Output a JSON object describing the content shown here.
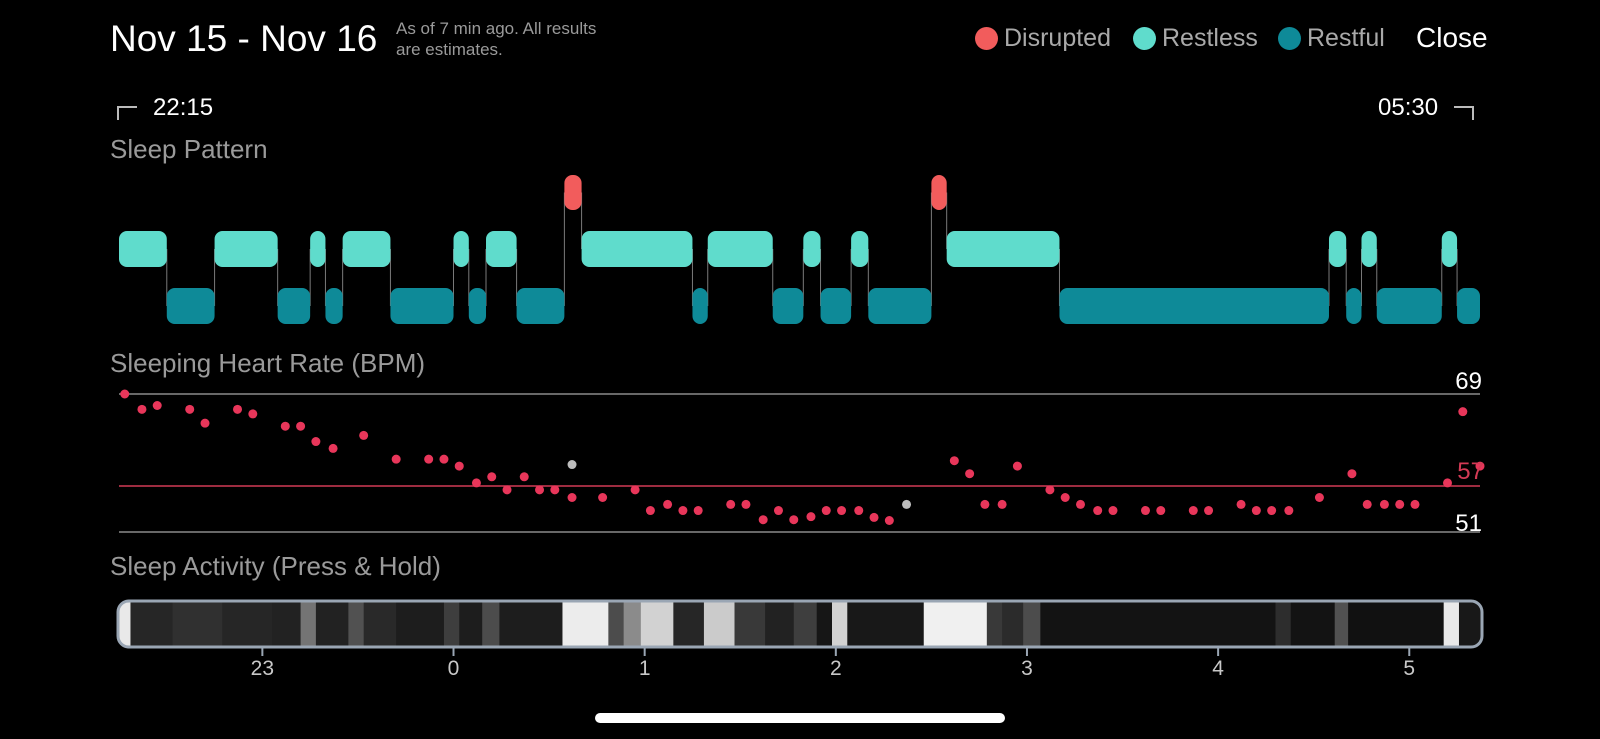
{
  "header": {
    "date_range": "Nov 15 - Nov 16",
    "as_of_line1": "As of 7 min ago. All results",
    "as_of_line2": "are estimates.",
    "close_label": "Close"
  },
  "legend": [
    {
      "label": "Disrupted",
      "color": "#f25c5c"
    },
    {
      "label": "Restless",
      "color": "#5fdccc"
    },
    {
      "label": "Restful",
      "color": "#0e8a98"
    }
  ],
  "time_range": {
    "start": "22:15",
    "end": "05:30"
  },
  "sections": {
    "sleep_pattern": "Sleep Pattern",
    "heart_rate": "Sleeping Heart Rate (BPM)",
    "activity": "Sleep Activity (Press & Hold)"
  },
  "heart_rate": {
    "max_label": "69",
    "avg_label": "57",
    "min_label": "51",
    "max": 69,
    "avg": 57,
    "min": 51,
    "dot_color": "#e8365a",
    "avg_line_color": "#d23a55",
    "gray_dot_color": "#bdbdbd",
    "points": [
      [
        22.28,
        69
      ],
      [
        22.37,
        67
      ],
      [
        22.45,
        67.5
      ],
      [
        22.62,
        67
      ],
      [
        22.7,
        65.2
      ],
      [
        22.87,
        67
      ],
      [
        22.95,
        66.4
      ],
      [
        23.12,
        64.8
      ],
      [
        23.2,
        64.8
      ],
      [
        23.28,
        62.8
      ],
      [
        23.37,
        61.9
      ],
      [
        23.53,
        63.6
      ],
      [
        23.7,
        60.5
      ],
      [
        23.87,
        60.5
      ],
      [
        23.95,
        60.5
      ],
      [
        24.03,
        59.6
      ],
      [
        24.12,
        57.4
      ],
      [
        24.2,
        58.2
      ],
      [
        24.28,
        56.5
      ],
      [
        24.37,
        58.2
      ],
      [
        24.45,
        56.5
      ],
      [
        24.53,
        56.5
      ],
      [
        24.62,
        55.5
      ],
      [
        24.78,
        55.5
      ],
      [
        24.95,
        56.5
      ],
      [
        25.03,
        53.8
      ],
      [
        25.12,
        54.6
      ],
      [
        25.2,
        53.8
      ],
      [
        25.28,
        53.8
      ],
      [
        25.45,
        54.6
      ],
      [
        25.53,
        54.6
      ],
      [
        25.62,
        52.6
      ],
      [
        25.7,
        53.8
      ],
      [
        25.78,
        52.6
      ],
      [
        25.87,
        53.0
      ],
      [
        25.95,
        53.8
      ],
      [
        26.03,
        53.8
      ],
      [
        26.12,
        53.8
      ],
      [
        26.2,
        52.9
      ],
      [
        26.28,
        52.5
      ],
      [
        26.62,
        60.3
      ],
      [
        26.7,
        58.6
      ],
      [
        26.78,
        54.6
      ],
      [
        26.87,
        54.6
      ],
      [
        26.95,
        59.6
      ],
      [
        27.12,
        56.5
      ],
      [
        27.2,
        55.5
      ],
      [
        27.28,
        54.6
      ],
      [
        27.37,
        53.8
      ],
      [
        27.45,
        53.8
      ],
      [
        27.62,
        53.8
      ],
      [
        27.7,
        53.8
      ],
      [
        27.87,
        53.8
      ],
      [
        27.95,
        53.8
      ],
      [
        28.12,
        54.6
      ],
      [
        28.2,
        53.8
      ],
      [
        28.28,
        53.8
      ],
      [
        28.37,
        53.8
      ],
      [
        28.53,
        55.5
      ],
      [
        28.7,
        58.6
      ],
      [
        28.78,
        54.6
      ],
      [
        28.87,
        54.6
      ],
      [
        28.95,
        54.6
      ],
      [
        29.03,
        54.6
      ],
      [
        29.2,
        57.4
      ],
      [
        29.28,
        66.7
      ],
      [
        29.37,
        59.6
      ]
    ],
    "gray_points": [
      [
        24.62,
        59.8
      ],
      [
        26.37,
        54.6
      ]
    ]
  },
  "sleep_pattern": {
    "x_start": 22.25,
    "x_end": 29.37,
    "segments": [
      [
        "restless",
        22.25,
        22.5
      ],
      [
        "restful",
        22.5,
        22.75
      ],
      [
        "restless",
        22.75,
        23.08
      ],
      [
        "restful",
        23.08,
        23.25
      ],
      [
        "restless",
        23.25,
        23.33
      ],
      [
        "restful",
        23.33,
        23.42
      ],
      [
        "restless",
        23.42,
        23.67
      ],
      [
        "restful",
        23.67,
        24.0
      ],
      [
        "restless",
        24.0,
        24.08
      ],
      [
        "restful",
        24.08,
        24.17
      ],
      [
        "restless",
        24.17,
        24.33
      ],
      [
        "restful",
        24.33,
        24.58
      ],
      [
        "disrupted",
        24.58,
        24.67
      ],
      [
        "restless",
        24.67,
        25.25
      ],
      [
        "restful",
        25.25,
        25.33
      ],
      [
        "restless",
        25.33,
        25.67
      ],
      [
        "restful",
        25.67,
        25.83
      ],
      [
        "restless",
        25.83,
        25.92
      ],
      [
        "restful",
        25.92,
        26.08
      ],
      [
        "restless",
        26.08,
        26.17
      ],
      [
        "restful",
        26.17,
        26.5
      ],
      [
        "disrupted",
        26.5,
        26.58
      ],
      [
        "restless",
        26.58,
        27.17
      ],
      [
        "restful",
        27.17,
        28.58
      ],
      [
        "restless",
        28.58,
        28.67
      ],
      [
        "restful",
        28.67,
        28.75
      ],
      [
        "restless",
        28.75,
        28.83
      ],
      [
        "restful",
        28.83,
        29.17
      ],
      [
        "restless",
        29.17,
        29.25
      ],
      [
        "restful",
        29.25,
        29.37
      ]
    ]
  },
  "activity": {
    "x_start": 22.25,
    "x_end": 29.37,
    "levels": [
      [
        22.25,
        22.31,
        0.95
      ],
      [
        22.31,
        22.53,
        0.12
      ],
      [
        22.53,
        22.79,
        0.16
      ],
      [
        22.79,
        23.05,
        0.12
      ],
      [
        23.05,
        23.2,
        0.1
      ],
      [
        23.2,
        23.28,
        0.45
      ],
      [
        23.28,
        23.45,
        0.1
      ],
      [
        23.45,
        23.53,
        0.3
      ],
      [
        23.53,
        23.7,
        0.13
      ],
      [
        23.7,
        23.95,
        0.08
      ],
      [
        23.95,
        24.03,
        0.22
      ],
      [
        24.03,
        24.15,
        0.08
      ],
      [
        24.15,
        24.24,
        0.28
      ],
      [
        24.24,
        24.57,
        0.08
      ],
      [
        24.57,
        24.81,
        0.96
      ],
      [
        24.81,
        24.89,
        0.28
      ],
      [
        24.89,
        24.98,
        0.55
      ],
      [
        24.98,
        25.15,
        0.85
      ],
      [
        25.15,
        25.31,
        0.12
      ],
      [
        25.31,
        25.47,
        0.82
      ],
      [
        25.47,
        25.63,
        0.2
      ],
      [
        25.63,
        25.78,
        0.1
      ],
      [
        25.78,
        25.9,
        0.22
      ],
      [
        25.9,
        25.98,
        0.05
      ],
      [
        25.98,
        26.06,
        0.85
      ],
      [
        26.06,
        26.46,
        0.06
      ],
      [
        26.46,
        26.79,
        0.98
      ],
      [
        26.79,
        26.87,
        0.2
      ],
      [
        26.87,
        26.98,
        0.14
      ],
      [
        26.98,
        27.07,
        0.28
      ],
      [
        27.07,
        28.3,
        0.04
      ],
      [
        28.3,
        28.38,
        0.15
      ],
      [
        28.38,
        28.61,
        0.04
      ],
      [
        28.61,
        28.68,
        0.3
      ],
      [
        28.68,
        29.18,
        0.03
      ],
      [
        29.18,
        29.26,
        0.95
      ],
      [
        29.26,
        29.37,
        0.06
      ]
    ],
    "ticks": [
      {
        "label": "23",
        "value": 23
      },
      {
        "label": "0",
        "value": 24
      },
      {
        "label": "1",
        "value": 25
      },
      {
        "label": "2",
        "value": 26
      },
      {
        "label": "3",
        "value": 27
      },
      {
        "label": "4",
        "value": 28
      },
      {
        "label": "5",
        "value": 29
      }
    ]
  }
}
